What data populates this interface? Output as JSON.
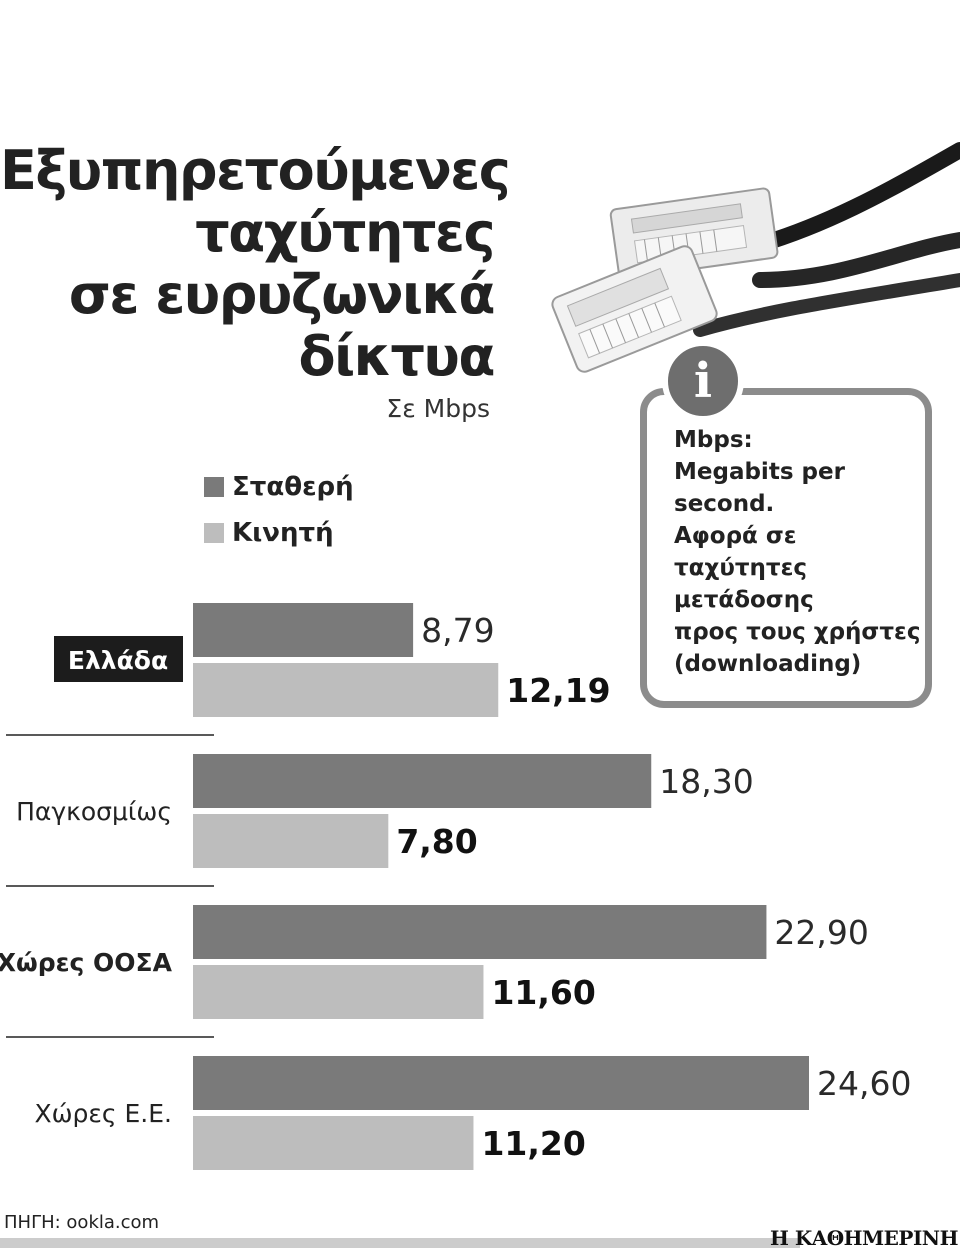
{
  "chart_data": {
    "type": "bar",
    "orientation": "horizontal",
    "title_lines": [
      "Εξυπηρετούμενες",
      "ταχύτητες",
      "σε ευρυζωνικά",
      "δίκτυα"
    ],
    "unit_label": "Σε Mbps",
    "categories": [
      "Ελλάδα",
      "Παγκοσμίως",
      "Χώρες ΟΟΣΑ",
      "Χώρες Ε.Ε."
    ],
    "category_bold": [
      true,
      false,
      true,
      false
    ],
    "category_highlight": [
      true,
      false,
      false,
      false
    ],
    "value_labels": {
      "fixed": [
        "8,79",
        "18,30",
        "22,90",
        "24,60"
      ],
      "mobile": [
        "12,19",
        "7,80",
        "11,60",
        "11,20"
      ]
    },
    "series": [
      {
        "name": "Σταθερή",
        "color": "#7a7a7a",
        "values": [
          8.79,
          18.3,
          22.9,
          24.6
        ]
      },
      {
        "name": "Κινητή",
        "color": "#bdbdbd",
        "values": [
          12.19,
          7.8,
          11.6,
          11.2
        ]
      }
    ],
    "xlim": [
      0,
      24.6
    ],
    "grid": false,
    "legend_position": "top-left"
  },
  "info_box": {
    "icon": "info-icon",
    "text": "Mbps:\nMegabits per\nsecond.\nΑφορά σε\nταχύτητες\nμετάδοσης\nπρος τους χρήστες\n(downloading)"
  },
  "source": "ΠΗΓΗ: ookla.com",
  "brand": "Η ΚΑΘΗΜΕΡΙΝΗ"
}
